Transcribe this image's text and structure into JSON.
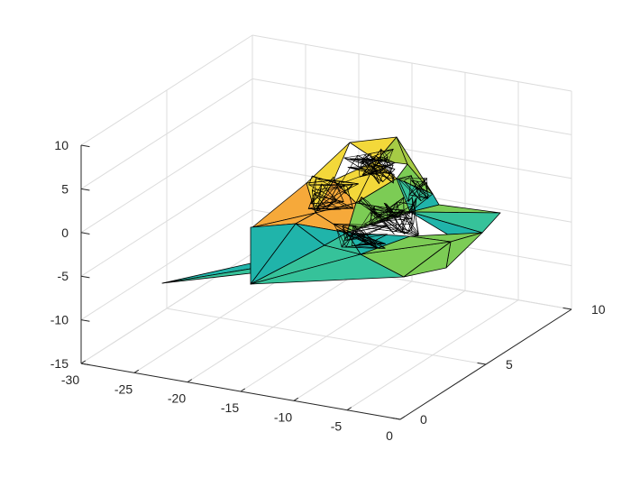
{
  "chart_data": {
    "type": "surface",
    "title": "",
    "xlabel": "",
    "ylabel": "",
    "zlabel": "",
    "xlim": [
      -30,
      0
    ],
    "ylim": [
      0,
      10
    ],
    "zlim": [
      -15,
      10
    ],
    "x_ticks": [
      "-30",
      "-25",
      "-20",
      "-15",
      "-10",
      "-5",
      "0"
    ],
    "y_ticks": [
      "0",
      "5",
      "10"
    ],
    "z_ticks": [
      "-15",
      "-10",
      "-5",
      "0",
      "5",
      "10"
    ],
    "grid": true,
    "colormap": "parula",
    "edge_color": "#000000",
    "colors": {
      "low": "#20b4aa",
      "mid_low": "#36c29a",
      "mid": "#7ccc55",
      "mid_high": "#a6cb45",
      "high_orange": "#f6a93a",
      "high_yellow": "#f3d83a"
    }
  }
}
